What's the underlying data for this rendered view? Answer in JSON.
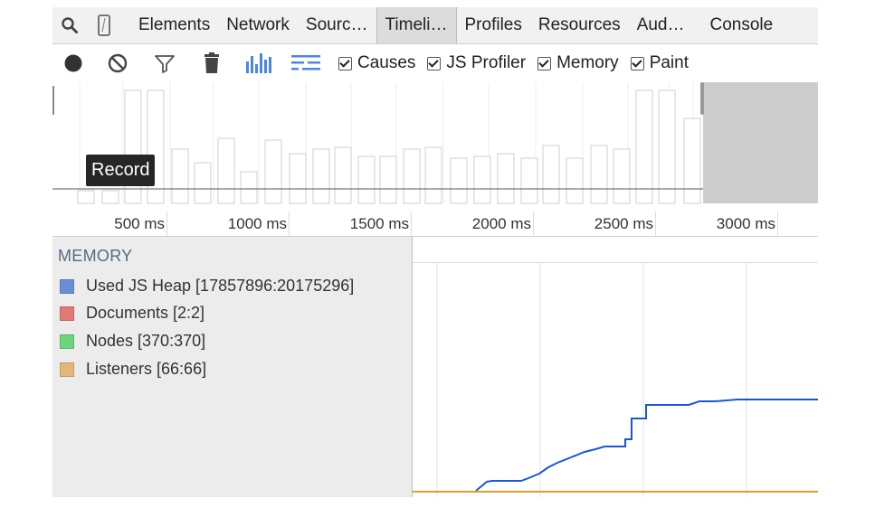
{
  "tabs": [
    {
      "label": "Elements",
      "selected": false
    },
    {
      "label": "Network",
      "selected": false
    },
    {
      "label": "Sourc…",
      "selected": false
    },
    {
      "label": "Timeli…",
      "selected": true
    },
    {
      "label": "Profiles",
      "selected": false
    },
    {
      "label": "Resources",
      "selected": false
    },
    {
      "label": "Aud…",
      "selected": false
    },
    {
      "label": "Console",
      "selected": false
    }
  ],
  "tabbar_icons": [
    "search-icon",
    "device-icon"
  ],
  "toolbar": {
    "icons": [
      "record-icon",
      "clear-icon",
      "filter-icon",
      "garbage-collect-icon",
      "bar-view-icon",
      "flame-view-icon"
    ],
    "checkboxes": [
      {
        "label": "Causes",
        "checked": true
      },
      {
        "label": "JS Profiler",
        "checked": true
      },
      {
        "label": "Memory",
        "checked": true
      },
      {
        "label": "Paint",
        "checked": true
      }
    ],
    "tooltip": "Record"
  },
  "ruler": {
    "ticks": [
      "500 ms",
      "1000 ms",
      "1500 ms",
      "2000 ms",
      "2500 ms",
      "3000 ms"
    ]
  },
  "memory": {
    "title": "MEMORY",
    "counters": [
      {
        "label": "Used JS Heap [17857896:20175296]",
        "color": "#6b8fd6"
      },
      {
        "label": "Documents [2:2]",
        "color": "#e07a74"
      },
      {
        "label": "Nodes [370:370]",
        "color": "#6fd37a"
      },
      {
        "label": "Listeners [66:66]",
        "color": "#e3b778"
      }
    ]
  },
  "colors": {
    "accent_blue": "#1a56db",
    "listeners_line": "#e39a2e",
    "tab_selected_bg": "#dcdcdc"
  }
}
